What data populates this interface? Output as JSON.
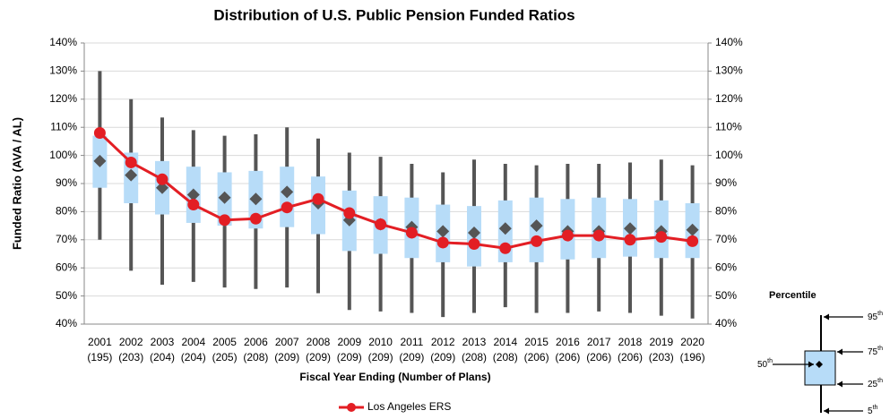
{
  "chart_data": {
    "type": "box",
    "title": "Distribution of U.S. Public Pension Funded Ratios",
    "y_label": "Funded Ratio (AVA / AL)",
    "x_label": "Fiscal Year Ending (Number of Plans)",
    "categories": [
      "2001",
      "2002",
      "2003",
      "2004",
      "2005",
      "2006",
      "2007",
      "2008",
      "2009",
      "2010",
      "2011",
      "2012",
      "2013",
      "2014",
      "2015",
      "2016",
      "2017",
      "2018",
      "2019",
      "2020"
    ],
    "plan_counts": [
      "(195)",
      "(203)",
      "(204)",
      "(204)",
      "(205)",
      "(208)",
      "(209)",
      "(209)",
      "(209)",
      "(209)",
      "(209)",
      "(209)",
      "(208)",
      "(208)",
      "(206)",
      "(206)",
      "(206)",
      "(206)",
      "(203)",
      "(196)"
    ],
    "boxes": {
      "p95": [
        130,
        120,
        113.5,
        109,
        107,
        107.5,
        110,
        106,
        101,
        99.5,
        97,
        94,
        98.5,
        97,
        96.5,
        97,
        97,
        97.5,
        98.5,
        96.5
      ],
      "p75": [
        107,
        101,
        98,
        96,
        94,
        94.5,
        96,
        92.5,
        87.5,
        85.5,
        85,
        82.5,
        82,
        84,
        85,
        84.5,
        85,
        84.5,
        84,
        83
      ],
      "p50": [
        98,
        93,
        88.5,
        86,
        85,
        84.5,
        87,
        83,
        77,
        75.5,
        74.5,
        73,
        72.5,
        74,
        75,
        73,
        73,
        74,
        73,
        73.5
      ],
      "p25": [
        88.5,
        83,
        79,
        76,
        75,
        74,
        74.5,
        72,
        66,
        65,
        63.5,
        62,
        60.5,
        62,
        62,
        63,
        63.5,
        64,
        63.5,
        63.5
      ],
      "p5": [
        70,
        59,
        54,
        55,
        53,
        52.5,
        53,
        51,
        45,
        44.5,
        44,
        42.5,
        44,
        46,
        44,
        44,
        44.5,
        44,
        43,
        42
      ],
      "box_color": "#b7dcf8",
      "whisker_color": "#555555",
      "median_color": "#555555"
    },
    "series": [
      {
        "name": "Los Angeles ERS",
        "color": "#e31e24",
        "values": [
          108,
          97.5,
          91.5,
          82.5,
          77,
          77.5,
          81.5,
          84.5,
          79.5,
          75.5,
          72.5,
          69,
          68.5,
          67,
          69.5,
          71.5,
          71.5,
          70,
          71,
          69.5
        ]
      }
    ],
    "ylim": [
      40,
      140
    ],
    "yticks": [
      {
        "value": 40,
        "label": "40%"
      },
      {
        "value": 50,
        "label": "50%"
      },
      {
        "value": 60,
        "label": "60%"
      },
      {
        "value": 70,
        "label": "70%"
      },
      {
        "value": 80,
        "label": "80%"
      },
      {
        "value": 90,
        "label": "90%"
      },
      {
        "value": 100,
        "label": "100%"
      },
      {
        "value": 110,
        "label": "110%"
      },
      {
        "value": 120,
        "label": "120%"
      },
      {
        "value": 130,
        "label": "130%"
      },
      {
        "value": 140,
        "label": "140%"
      }
    ],
    "y2lim": [
      40,
      140
    ],
    "y2ticks": [
      {
        "value": 40,
        "label": "40%"
      },
      {
        "value": 50,
        "label": "50%"
      },
      {
        "value": 60,
        "label": "60%"
      },
      {
        "value": 70,
        "label": "70%"
      },
      {
        "value": 80,
        "label": "80%"
      },
      {
        "value": 90,
        "label": "90%"
      },
      {
        "value": 100,
        "label": "100%"
      },
      {
        "value": 110,
        "label": "110%"
      },
      {
        "value": 120,
        "label": "120%"
      },
      {
        "value": 130,
        "label": "130%"
      },
      {
        "value": 140,
        "label": "140%"
      }
    ],
    "grid": true,
    "legend": "bottom",
    "key": {
      "title": "Percentile",
      "labels": [
        {
          "num": "95",
          "sup": "th"
        },
        {
          "num": "75",
          "sup": "th"
        },
        {
          "num": "50",
          "sup": "th"
        },
        {
          "num": "25",
          "sup": "th"
        },
        {
          "num": "5",
          "sup": "th"
        }
      ]
    }
  }
}
